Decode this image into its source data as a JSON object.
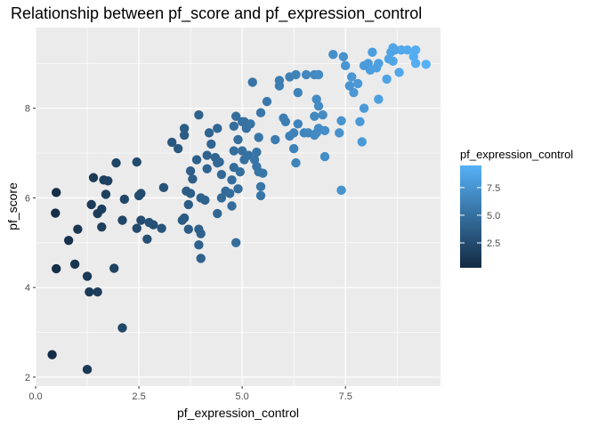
{
  "chart_data": {
    "type": "scatter",
    "title": "Relationship between pf_score and pf_expression_control",
    "xlabel": "pf_expression_control",
    "ylabel": "pf_score",
    "xlim": [
      0,
      9.8
    ],
    "ylim": [
      1.8,
      9.8
    ],
    "x_ticks": [
      "0.0",
      "2.5",
      "5.0",
      "7.5"
    ],
    "y_ticks": [
      "2",
      "4",
      "6",
      "8"
    ],
    "grid": true,
    "legend": {
      "title": "pf_expression_control",
      "position": "right",
      "type": "colorbar",
      "labels": [
        "2.5",
        "5.0",
        "7.5"
      ],
      "range": [
        0.25,
        9.5
      ],
      "color_low": "#132B43",
      "color_high": "#56B1F7"
    },
    "points": [
      [
        0.4,
        2.5
      ],
      [
        1.25,
        2.17
      ],
      [
        2.1,
        3.1
      ],
      [
        1.3,
        3.9
      ],
      [
        1.5,
        3.9
      ],
      [
        1.25,
        4.25
      ],
      [
        0.5,
        4.42
      ],
      [
        0.95,
        4.52
      ],
      [
        1.9,
        4.43
      ],
      [
        0.8,
        5.05
      ],
      [
        1.02,
        5.3
      ],
      [
        0.48,
        5.66
      ],
      [
        0.5,
        6.12
      ],
      [
        1.35,
        5.85
      ],
      [
        1.6,
        5.75
      ],
      [
        1.5,
        5.65
      ],
      [
        1.6,
        5.35
      ],
      [
        2.1,
        5.5
      ],
      [
        1.7,
        6.08
      ],
      [
        2.15,
        5.97
      ],
      [
        1.4,
        6.45
      ],
      [
        1.65,
        6.4
      ],
      [
        1.75,
        6.38
      ],
      [
        1.95,
        6.78
      ],
      [
        2.45,
        6.8
      ],
      [
        2.5,
        6.05
      ],
      [
        2.55,
        6.1
      ],
      [
        2.55,
        5.5
      ],
      [
        2.45,
        5.32
      ],
      [
        2.75,
        5.45
      ],
      [
        2.85,
        5.4
      ],
      [
        2.7,
        5.08
      ],
      [
        3.05,
        5.32
      ],
      [
        3.1,
        6.23
      ],
      [
        3.3,
        7.24
      ],
      [
        3.45,
        7.1
      ],
      [
        3.6,
        7.55
      ],
      [
        3.6,
        7.4
      ],
      [
        3.6,
        5.55
      ],
      [
        3.55,
        5.5
      ],
      [
        3.7,
        5.3
      ],
      [
        3.7,
        5.85
      ],
      [
        3.8,
        6.42
      ],
      [
        3.75,
        6.6
      ],
      [
        3.75,
        6.1
      ],
      [
        3.65,
        6.15
      ],
      [
        3.9,
        6.85
      ],
      [
        3.95,
        7.85
      ],
      [
        3.95,
        5.3
      ],
      [
        4.0,
        5.2
      ],
      [
        3.95,
        4.95
      ],
      [
        4.0,
        4.65
      ],
      [
        4.0,
        6.0
      ],
      [
        4.1,
        5.95
      ],
      [
        4.15,
        6.65
      ],
      [
        4.15,
        6.95
      ],
      [
        4.2,
        7.45
      ],
      [
        4.25,
        7.2
      ],
      [
        4.4,
        7.55
      ],
      [
        4.35,
        6.9
      ],
      [
        4.4,
        6.78
      ],
      [
        4.45,
        6.8
      ],
      [
        4.5,
        6.52
      ],
      [
        4.4,
        5.65
      ],
      [
        4.5,
        6.0
      ],
      [
        4.6,
        6.15
      ],
      [
        4.7,
        6.1
      ],
      [
        4.75,
        5.82
      ],
      [
        4.75,
        6.4
      ],
      [
        4.8,
        6.68
      ],
      [
        4.8,
        7.05
      ],
      [
        4.8,
        7.6
      ],
      [
        4.85,
        7.82
      ],
      [
        4.85,
        5.0
      ],
      [
        4.9,
        6.2
      ],
      [
        4.9,
        7.3
      ],
      [
        5.0,
        7.7
      ],
      [
        5.05,
        7.7
      ],
      [
        5.1,
        7.55
      ],
      [
        4.95,
        6.58
      ],
      [
        5.0,
        7.05
      ],
      [
        5.05,
        6.85
      ],
      [
        5.15,
        6.95
      ],
      [
        5.3,
        6.85
      ],
      [
        5.35,
        7.02
      ],
      [
        5.4,
        7.35
      ],
      [
        5.45,
        7.9
      ],
      [
        5.25,
        8.58
      ],
      [
        5.2,
        7.65
      ],
      [
        5.35,
        6.7
      ],
      [
        5.45,
        6.05
      ],
      [
        5.45,
        6.25
      ],
      [
        5.5,
        6.55
      ],
      [
        5.4,
        6.58
      ],
      [
        5.6,
        8.15
      ],
      [
        5.8,
        7.3
      ],
      [
        5.9,
        8.5
      ],
      [
        5.9,
        8.62
      ],
      [
        6.0,
        7.78
      ],
      [
        6.05,
        7.7
      ],
      [
        6.15,
        7.38
      ],
      [
        6.15,
        8.7
      ],
      [
        6.35,
        7.65
      ],
      [
        6.25,
        7.1
      ],
      [
        6.25,
        7.45
      ],
      [
        6.3,
        6.78
      ],
      [
        6.35,
        8.35
      ],
      [
        6.5,
        7.45
      ],
      [
        6.3,
        8.75
      ],
      [
        6.55,
        8.75
      ],
      [
        6.75,
        8.75
      ],
      [
        6.85,
        8.75
      ],
      [
        6.6,
        7.45
      ],
      [
        6.75,
        7.4
      ],
      [
        6.85,
        7.55
      ],
      [
        6.8,
        7.45
      ],
      [
        6.75,
        7.82
      ],
      [
        6.8,
        8.2
      ],
      [
        6.85,
        8.05
      ],
      [
        6.95,
        7.85
      ],
      [
        7.0,
        6.92
      ],
      [
        7.0,
        7.5
      ],
      [
        7.2,
        9.2
      ],
      [
        7.35,
        7.45
      ],
      [
        7.4,
        7.72
      ],
      [
        7.4,
        6.17
      ],
      [
        7.45,
        9.15
      ],
      [
        7.5,
        8.95
      ],
      [
        7.6,
        8.5
      ],
      [
        7.65,
        8.7
      ],
      [
        7.7,
        8.35
      ],
      [
        7.8,
        8.55
      ],
      [
        7.85,
        7.7
      ],
      [
        7.9,
        7.25
      ],
      [
        7.95,
        8.0
      ],
      [
        7.95,
        8.95
      ],
      [
        8.05,
        9.0
      ],
      [
        8.1,
        8.85
      ],
      [
        8.15,
        9.25
      ],
      [
        8.25,
        8.9
      ],
      [
        8.3,
        9.0
      ],
      [
        8.3,
        8.2
      ],
      [
        8.5,
        8.65
      ],
      [
        8.55,
        9.1
      ],
      [
        8.6,
        9.25
      ],
      [
        8.65,
        9.35
      ],
      [
        8.7,
        9.3
      ],
      [
        8.65,
        9.05
      ],
      [
        8.8,
        8.8
      ],
      [
        8.85,
        9.3
      ],
      [
        9.0,
        9.3
      ],
      [
        9.15,
        9.15
      ],
      [
        9.2,
        9.3
      ],
      [
        9.2,
        9.0
      ],
      [
        9.45,
        8.98
      ]
    ]
  }
}
